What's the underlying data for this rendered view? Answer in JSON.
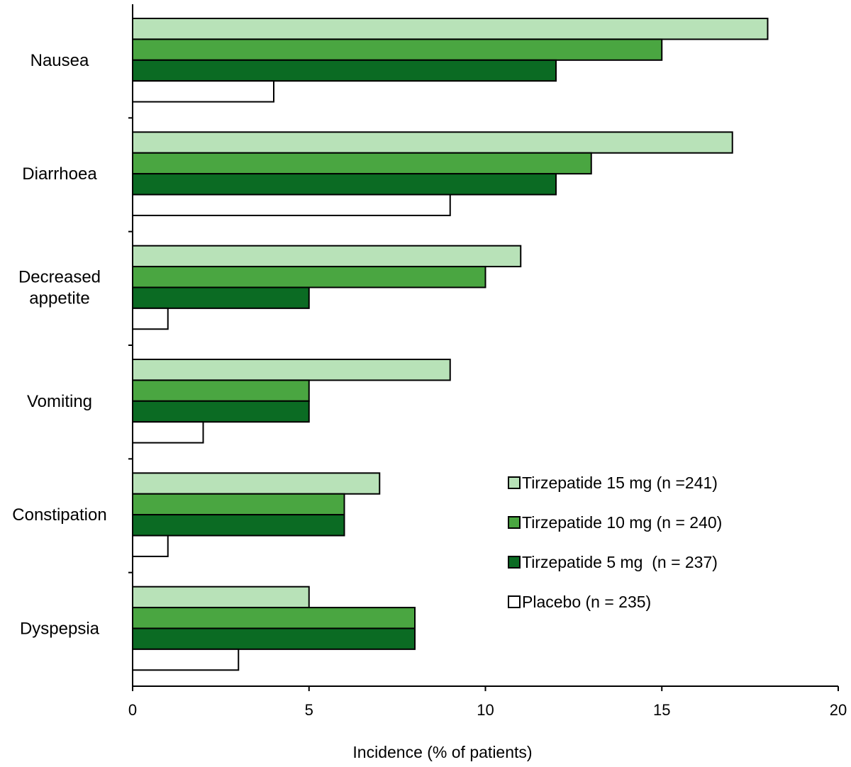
{
  "chart_data": {
    "type": "bar",
    "orientation": "horizontal",
    "categories": [
      [
        "Nausea"
      ],
      [
        "Diarrhoea"
      ],
      [
        "Decreased",
        "appetite"
      ],
      [
        "Vomiting"
      ],
      [
        "Constipation"
      ],
      [
        "Dyspepsia"
      ]
    ],
    "series": [
      {
        "name": "Tirzepatide 15 mg (n =241)",
        "color": "#b8e2b8",
        "values": [
          18,
          17,
          11,
          9,
          7,
          5
        ]
      },
      {
        "name": "Tirzepatide 10 mg (n = 240)",
        "color": "#4aa641",
        "values": [
          15,
          13,
          10,
          5,
          6,
          8
        ]
      },
      {
        "name": "Tirzepatide 5 mg  (n = 237)",
        "color": "#0b6b23",
        "values": [
          12,
          12,
          5,
          5,
          6,
          8
        ]
      },
      {
        "name": "Placebo (n = 235)",
        "color": "#ffffff",
        "values": [
          4,
          9,
          1,
          2,
          1,
          3
        ]
      }
    ],
    "xlabel": "Incidence (% of patients)",
    "ylabel": "",
    "title": "",
    "xlim": [
      0,
      20
    ],
    "xticks": [
      0,
      5,
      10,
      15,
      20
    ],
    "grid": false,
    "legend_position": "bottom-right"
  }
}
